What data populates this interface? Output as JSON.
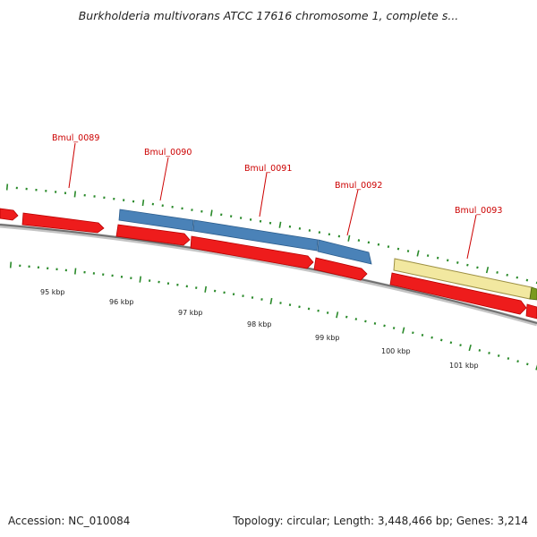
{
  "title": "Burkholderia multivorans ATCC 17616 chromosome 1, complete s...",
  "footer": {
    "accession": "Accession: NC_010084",
    "summary": "Topology: circular; Length: 3,448,466 bp; Genes: 3,214"
  },
  "colors": {
    "cds_forward": "#4a82b8",
    "cds_reverse": "#ee1c1c",
    "other_feature": "#f2e8a0",
    "tail_feature": "#7a9a1e",
    "backbone": "#7a7a7a",
    "tick": "#2a8a2a",
    "gene_label": "#cc0000"
  },
  "gene_labels": [
    "Bmul_0089",
    "Bmul_0090",
    "Bmul_0091",
    "Bmul_0092",
    "Bmul_0093"
  ],
  "kbp_labels": [
    "95 kbp",
    "96 kbp",
    "97 kbp",
    "98 kbp",
    "99 kbp",
    "100 kbp",
    "101 kbp"
  ]
}
